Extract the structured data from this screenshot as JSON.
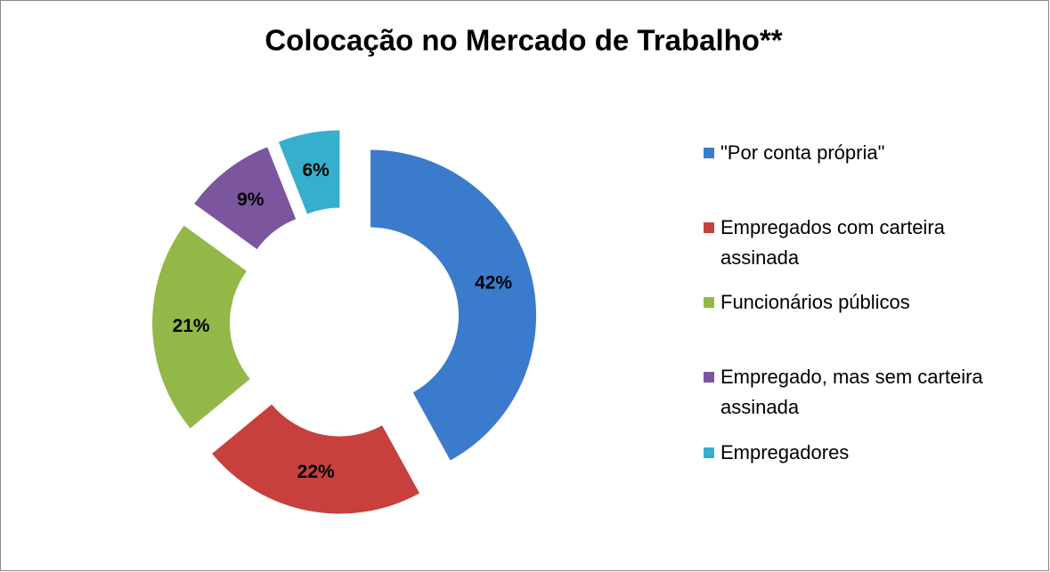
{
  "chart_data": {
    "type": "donut",
    "title": "Colocação no Mercado de Trabalho**",
    "categories": [
      "\"Por conta própria\"",
      "Empregados com carteira assinada",
      "Funcionários públicos",
      "Empregado, mas sem carteira assinada",
      "Empregadores"
    ],
    "values": [
      42,
      22,
      21,
      9,
      6
    ],
    "value_labels": [
      "42%",
      "22%",
      "21%",
      "9%",
      "6%"
    ],
    "colors": [
      "#3b7bcc",
      "#c7403d",
      "#94b847",
      "#7b569f",
      "#36afcc"
    ],
    "legend": "right"
  }
}
